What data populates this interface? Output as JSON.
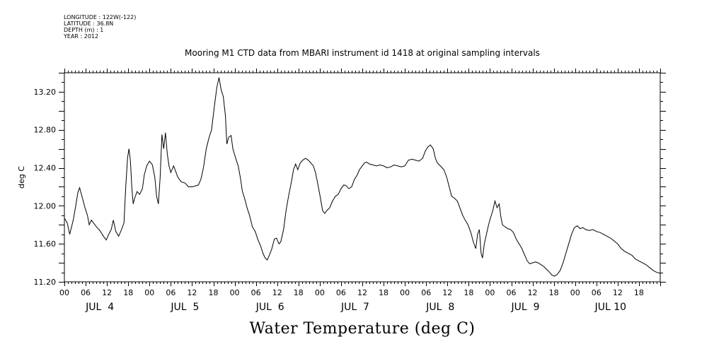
{
  "metadata": {
    "longitude": "LONGITUDE : 122W(-122)",
    "latitude": "LATITUDE : 36.8N",
    "depth": "DEPTH (m) : 1",
    "year": "YEAR : 2012"
  },
  "chart_data": {
    "type": "line",
    "title": "Mooring M1 CTD data from MBARI instrument id 1418 at original sampling intervals",
    "xlabel": "Water Temperature (deg C)",
    "ylabel": "deg C",
    "xlim_hours": [
      0,
      168
    ],
    "ylim": [
      11.2,
      13.4
    ],
    "yticks": [
      "11.20",
      "11.60",
      "12.00",
      "12.40",
      "12.80",
      "13.20"
    ],
    "xtick_hour_labels": [
      "00",
      "06",
      "12",
      "18",
      "00",
      "06",
      "12",
      "18",
      "00",
      "06",
      "12",
      "18",
      "00",
      "06",
      "12",
      "18",
      "00",
      "06",
      "12",
      "18",
      "00",
      "06",
      "12",
      "18",
      "00",
      "06",
      "12",
      "18"
    ],
    "day_labels": [
      "JUL  4",
      "JUL  5",
      "JUL  6",
      "JUL  7",
      "JUL  8",
      "JUL  9",
      "JUL 10"
    ],
    "series": [
      {
        "values": [
          [
            0,
            11.87
          ],
          [
            0.8,
            11.82
          ],
          [
            1.5,
            11.7
          ],
          [
            2.5,
            11.85
          ],
          [
            3.2,
            12.0
          ],
          [
            3.8,
            12.14
          ],
          [
            4.3,
            12.19
          ],
          [
            4.8,
            12.12
          ],
          [
            5.3,
            12.05
          ],
          [
            5.8,
            11.98
          ],
          [
            6.5,
            11.9
          ],
          [
            7.0,
            11.8
          ],
          [
            7.6,
            11.85
          ],
          [
            8.2,
            11.82
          ],
          [
            9.0,
            11.78
          ],
          [
            10.0,
            11.74
          ],
          [
            11.0,
            11.68
          ],
          [
            11.8,
            11.64
          ],
          [
            12.5,
            11.7
          ],
          [
            13.2,
            11.75
          ],
          [
            13.8,
            11.85
          ],
          [
            14.5,
            11.73
          ],
          [
            15.3,
            11.68
          ],
          [
            16.0,
            11.74
          ],
          [
            16.8,
            11.82
          ],
          [
            17.3,
            12.2
          ],
          [
            17.8,
            12.5
          ],
          [
            18.2,
            12.6
          ],
          [
            18.6,
            12.48
          ],
          [
            19.0,
            12.2
          ],
          [
            19.4,
            12.02
          ],
          [
            19.8,
            12.08
          ],
          [
            20.5,
            12.15
          ],
          [
            21.2,
            12.12
          ],
          [
            22.0,
            12.18
          ],
          [
            22.5,
            12.32
          ],
          [
            23.2,
            12.42
          ],
          [
            24.0,
            12.47
          ],
          [
            24.8,
            12.43
          ],
          [
            25.5,
            12.3
          ],
          [
            26.0,
            12.1
          ],
          [
            26.5,
            12.02
          ],
          [
            27.0,
            12.3
          ],
          [
            27.5,
            12.75
          ],
          [
            28.0,
            12.6
          ],
          [
            28.5,
            12.77
          ],
          [
            29.0,
            12.55
          ],
          [
            29.5,
            12.42
          ],
          [
            30.0,
            12.35
          ],
          [
            30.8,
            12.42
          ],
          [
            31.5,
            12.35
          ],
          [
            32.0,
            12.3
          ],
          [
            33.0,
            12.25
          ],
          [
            34.0,
            12.24
          ],
          [
            35.0,
            12.2
          ],
          [
            36.0,
            12.2
          ],
          [
            37.0,
            12.21
          ],
          [
            37.8,
            12.22
          ],
          [
            38.5,
            12.28
          ],
          [
            39.2,
            12.4
          ],
          [
            40.0,
            12.6
          ],
          [
            40.8,
            12.72
          ],
          [
            41.5,
            12.8
          ],
          [
            42.3,
            13.05
          ],
          [
            43.0,
            13.25
          ],
          [
            43.6,
            13.35
          ],
          [
            44.2,
            13.22
          ],
          [
            44.8,
            13.15
          ],
          [
            45.4,
            12.95
          ],
          [
            45.8,
            12.65
          ],
          [
            46.3,
            12.72
          ],
          [
            47.0,
            12.74
          ],
          [
            47.5,
            12.6
          ],
          [
            48.3,
            12.5
          ],
          [
            49.0,
            12.42
          ],
          [
            49.6,
            12.3
          ],
          [
            50.2,
            12.15
          ],
          [
            50.8,
            12.08
          ],
          [
            51.5,
            11.98
          ],
          [
            52.2,
            11.9
          ],
          [
            53.0,
            11.78
          ],
          [
            53.8,
            11.73
          ],
          [
            54.5,
            11.65
          ],
          [
            55.3,
            11.58
          ],
          [
            56.0,
            11.5
          ],
          [
            56.6,
            11.45
          ],
          [
            57.2,
            11.43
          ],
          [
            57.8,
            11.48
          ],
          [
            58.5,
            11.55
          ],
          [
            59.2,
            11.65
          ],
          [
            59.8,
            11.66
          ],
          [
            60.5,
            11.6
          ],
          [
            61.0,
            11.62
          ],
          [
            61.8,
            11.75
          ],
          [
            62.5,
            11.95
          ],
          [
            63.2,
            12.1
          ],
          [
            64.0,
            12.25
          ],
          [
            64.6,
            12.38
          ],
          [
            65.2,
            12.44
          ],
          [
            65.8,
            12.38
          ],
          [
            66.5,
            12.45
          ],
          [
            67.2,
            12.48
          ],
          [
            68.0,
            12.5
          ],
          [
            68.8,
            12.48
          ],
          [
            69.5,
            12.45
          ],
          [
            70.2,
            12.42
          ],
          [
            70.8,
            12.35
          ],
          [
            71.5,
            12.22
          ],
          [
            72.2,
            12.08
          ],
          [
            72.8,
            11.95
          ],
          [
            73.4,
            11.92
          ],
          [
            74.0,
            11.95
          ],
          [
            74.8,
            11.98
          ],
          [
            75.6,
            12.05
          ],
          [
            76.4,
            12.1
          ],
          [
            77.2,
            12.12
          ],
          [
            78.0,
            12.18
          ],
          [
            78.8,
            12.22
          ],
          [
            79.5,
            12.21
          ],
          [
            80.2,
            12.18
          ],
          [
            81.0,
            12.2
          ],
          [
            81.8,
            12.28
          ],
          [
            82.5,
            12.32
          ],
          [
            83.2,
            12.38
          ],
          [
            84.0,
            12.42
          ],
          [
            84.6,
            12.45
          ],
          [
            85.2,
            12.46
          ],
          [
            86.0,
            12.44
          ],
          [
            87.0,
            12.43
          ],
          [
            88.0,
            12.42
          ],
          [
            89.0,
            12.43
          ],
          [
            90.0,
            12.42
          ],
          [
            91.0,
            12.4
          ],
          [
            92.0,
            12.41
          ],
          [
            93.0,
            12.43
          ],
          [
            94.0,
            12.42
          ],
          [
            95.0,
            12.41
          ],
          [
            96.0,
            12.42
          ],
          [
            97.0,
            12.48
          ],
          [
            98.0,
            12.49
          ],
          [
            99.0,
            12.48
          ],
          [
            100.0,
            12.47
          ],
          [
            101.0,
            12.5
          ],
          [
            101.8,
            12.58
          ],
          [
            102.5,
            12.62
          ],
          [
            103.2,
            12.64
          ],
          [
            104.0,
            12.6
          ],
          [
            104.6,
            12.5
          ],
          [
            105.2,
            12.45
          ],
          [
            106.0,
            12.42
          ],
          [
            107.0,
            12.38
          ],
          [
            107.8,
            12.3
          ],
          [
            108.5,
            12.2
          ],
          [
            109.2,
            12.1
          ],
          [
            110.0,
            12.08
          ],
          [
            110.8,
            12.05
          ],
          [
            111.5,
            11.98
          ],
          [
            112.3,
            11.9
          ],
          [
            113.0,
            11.85
          ],
          [
            113.8,
            11.8
          ],
          [
            114.6,
            11.72
          ],
          [
            115.3,
            11.62
          ],
          [
            116.0,
            11.55
          ],
          [
            116.5,
            11.7
          ],
          [
            117.0,
            11.75
          ],
          [
            117.5,
            11.5
          ],
          [
            117.9,
            11.45
          ],
          [
            118.4,
            11.6
          ],
          [
            119.0,
            11.7
          ],
          [
            119.6,
            11.8
          ],
          [
            120.2,
            11.88
          ],
          [
            120.8,
            11.95
          ],
          [
            121.4,
            12.05
          ],
          [
            122.0,
            11.98
          ],
          [
            122.6,
            12.02
          ],
          [
            123.0,
            11.9
          ],
          [
            123.5,
            11.8
          ],
          [
            124.2,
            11.78
          ],
          [
            125.0,
            11.76
          ],
          [
            125.8,
            11.75
          ],
          [
            126.6,
            11.72
          ],
          [
            127.4,
            11.65
          ],
          [
            128.2,
            11.6
          ],
          [
            129.0,
            11.55
          ],
          [
            129.8,
            11.48
          ],
          [
            130.5,
            11.42
          ],
          [
            131.2,
            11.39
          ],
          [
            132.0,
            11.4
          ],
          [
            132.8,
            11.41
          ],
          [
            133.6,
            11.4
          ],
          [
            134.4,
            11.38
          ],
          [
            135.2,
            11.36
          ],
          [
            136.0,
            11.33
          ],
          [
            136.8,
            11.3
          ],
          [
            137.5,
            11.27
          ],
          [
            138.2,
            11.26
          ],
          [
            139.0,
            11.28
          ],
          [
            139.8,
            11.32
          ],
          [
            140.6,
            11.4
          ],
          [
            141.4,
            11.5
          ],
          [
            142.2,
            11.6
          ],
          [
            143.0,
            11.7
          ],
          [
            143.8,
            11.77
          ],
          [
            144.6,
            11.79
          ],
          [
            145.4,
            11.76
          ],
          [
            146.2,
            11.77
          ],
          [
            147.0,
            11.75
          ],
          [
            148.0,
            11.74
          ],
          [
            149.0,
            11.75
          ],
          [
            150.0,
            11.73
          ],
          [
            151.0,
            11.72
          ],
          [
            152.0,
            11.7
          ],
          [
            153.0,
            11.68
          ],
          [
            154.0,
            11.66
          ],
          [
            155.0,
            11.63
          ],
          [
            156.0,
            11.6
          ],
          [
            157.0,
            11.55
          ],
          [
            158.0,
            11.52
          ],
          [
            159.0,
            11.5
          ],
          [
            160.0,
            11.48
          ],
          [
            161.0,
            11.44
          ],
          [
            162.0,
            11.42
          ],
          [
            163.0,
            11.4
          ],
          [
            164.0,
            11.38
          ],
          [
            165.0,
            11.35
          ],
          [
            166.0,
            11.32
          ],
          [
            167.0,
            11.3
          ],
          [
            168.0,
            11.29
          ]
        ]
      }
    ],
    "grid": false,
    "line_color": "#000000"
  }
}
